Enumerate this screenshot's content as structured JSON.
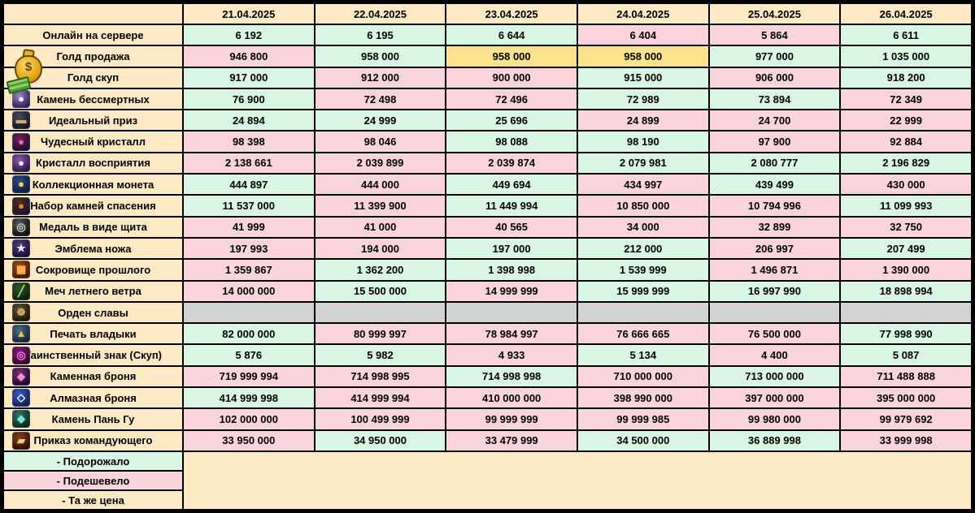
{
  "colors": {
    "up": "#d9f5e3",
    "down": "#f9d4da",
    "same": "#fbe38c",
    "empty": "#d2d2d2",
    "cream": "#fdeac4",
    "border": "#000000"
  },
  "chart_data": {
    "type": "table",
    "title": "",
    "columns": [
      "21.04.2025",
      "22.04.2025",
      "23.04.2025",
      "24.04.2025",
      "25.04.2025",
      "26.04.2025"
    ],
    "rows": [
      {
        "label": "Онлайн на сервере",
        "icon": null,
        "values": [
          6192,
          6195,
          6644,
          6404,
          5864,
          6611
        ],
        "changes": [
          "up",
          "up",
          "up",
          "down",
          "down",
          "up"
        ]
      },
      {
        "label": "Голд продажа",
        "icon": {
          "name": "money-bag-icon",
          "glyph": "$",
          "fg": "#6b4206",
          "bg1": "#f9d964",
          "bg2": "#b07408"
        },
        "values": [
          946800,
          958000,
          958000,
          958000,
          977000,
          1035000
        ],
        "changes": [
          "down",
          "up",
          "same",
          "same",
          "up",
          "up"
        ]
      },
      {
        "label": "Голд скуп",
        "icon": null,
        "values": [
          917000,
          912000,
          900000,
          915000,
          906000,
          918200
        ],
        "changes": [
          "up",
          "down",
          "down",
          "up",
          "down",
          "up"
        ]
      },
      {
        "label": "Камень бессмертных",
        "icon": {
          "name": "immortal-stone-icon",
          "glyph": "●",
          "fg": "#f2eeff",
          "bg1": "#9a8cc8",
          "bg2": "#2c1c54"
        },
        "values": [
          76900,
          72498,
          72496,
          72989,
          73894,
          72349
        ],
        "changes": [
          "up",
          "down",
          "down",
          "up",
          "up",
          "down"
        ]
      },
      {
        "label": "Идеальный приз",
        "icon": {
          "name": "ideal-prize-icon",
          "glyph": "▬",
          "fg": "#d9a96c",
          "bg1": "#4a4a66",
          "bg2": "#141420"
        },
        "values": [
          24894,
          24999,
          25696,
          24899,
          24700,
          22999
        ],
        "changes": [
          "up",
          "up",
          "up",
          "down",
          "down",
          "down"
        ]
      },
      {
        "label": "Чудесный кристалл",
        "icon": {
          "name": "wonder-crystal-icon",
          "glyph": "●",
          "fg": "#f060b0",
          "bg1": "#6a2458",
          "bg2": "#200c30"
        },
        "values": [
          98398,
          98046,
          98088,
          98190,
          97900,
          92884
        ],
        "changes": [
          "down",
          "down",
          "up",
          "up",
          "down",
          "down"
        ]
      },
      {
        "label": "Кристалл восприятия",
        "icon": {
          "name": "perception-crystal-icon",
          "glyph": "●",
          "fg": "#efe8ff",
          "bg1": "#8a5cb0",
          "bg2": "#2c1248"
        },
        "values": [
          2138661,
          2039899,
          2039874,
          2079981,
          2080777,
          2196829
        ],
        "changes": [
          "down",
          "down",
          "down",
          "up",
          "up",
          "up"
        ]
      },
      {
        "label": "Коллекционная монета",
        "icon": {
          "name": "collection-coin-icon",
          "glyph": "●",
          "fg": "#ffd34d",
          "bg1": "#2a4c8c",
          "bg2": "#0c1c3c"
        },
        "values": [
          444897,
          444000,
          449694,
          434997,
          439499,
          430000
        ],
        "changes": [
          "up",
          "down",
          "up",
          "down",
          "up",
          "down"
        ]
      },
      {
        "label": "Набор камней спасения",
        "icon": {
          "name": "salvation-stones-icon",
          "glyph": "●",
          "fg": "#e08838",
          "bg1": "#503018",
          "bg2": "#1c1030"
        },
        "values": [
          11537000,
          11399900,
          11449994,
          10850000,
          10794996,
          11099993
        ],
        "changes": [
          "up",
          "down",
          "up",
          "down",
          "down",
          "up"
        ]
      },
      {
        "label": "Медаль в виде щита",
        "icon": {
          "name": "shield-medal-icon",
          "glyph": "◎",
          "fg": "#d0d0d0",
          "bg1": "#606060",
          "bg2": "#0c0c0c"
        },
        "values": [
          41999,
          41000,
          40565,
          34000,
          32899,
          32750
        ],
        "changes": [
          "down",
          "down",
          "down",
          "down",
          "down",
          "down"
        ]
      },
      {
        "label": "Эмблема ножа",
        "icon": {
          "name": "knife-emblem-icon",
          "glyph": "★",
          "fg": "#e6e6ff",
          "bg1": "#4c3c80",
          "bg2": "#181034"
        },
        "values": [
          197993,
          194000,
          197000,
          212000,
          206997,
          207499
        ],
        "changes": [
          "down",
          "down",
          "up",
          "up",
          "down",
          "up"
        ]
      },
      {
        "label": "Сокровище прошлого",
        "icon": {
          "name": "past-treasure-icon",
          "glyph": "▦",
          "fg": "#ffb850",
          "bg1": "#a84e1c",
          "bg2": "#401808"
        },
        "values": [
          1359867,
          1362200,
          1398998,
          1539999,
          1496871,
          1390000
        ],
        "changes": [
          "down",
          "up",
          "up",
          "up",
          "down",
          "down"
        ]
      },
      {
        "label": "Меч летнего ветра",
        "icon": {
          "name": "summer-wind-sword-icon",
          "glyph": "╱",
          "fg": "#a0e878",
          "bg1": "#2c5828",
          "bg2": "#0c2008"
        },
        "values": [
          14000000,
          15500000,
          14999999,
          15999999,
          16997990,
          18898994
        ],
        "changes": [
          "down",
          "up",
          "down",
          "up",
          "up",
          "up"
        ]
      },
      {
        "label": "Орден славы",
        "icon": {
          "name": "glory-order-icon",
          "glyph": "☸",
          "fg": "#d8b060",
          "bg1": "#5c5438",
          "bg2": "#1c1608"
        },
        "values": [
          null,
          null,
          null,
          null,
          null,
          null
        ],
        "changes": [
          "empty",
          "empty",
          "empty",
          "empty",
          "empty",
          "empty"
        ]
      },
      {
        "label": "Печать владыки",
        "icon": {
          "name": "lord-seal-icon",
          "glyph": "▲",
          "fg": "#f0c040",
          "bg1": "#4c6c8c",
          "bg2": "#142434"
        },
        "values": [
          82000000,
          80999997,
          78984997,
          76666665,
          76500000,
          77998990
        ],
        "changes": [
          "up",
          "down",
          "down",
          "down",
          "down",
          "up"
        ]
      },
      {
        "label": "Таинственный знак (Скуп)",
        "icon": {
          "name": "mysterious-sign-icon",
          "glyph": "◎",
          "fg": "#ff74dc",
          "bg1": "#8c1c7c",
          "bg2": "#2c082c"
        },
        "values": [
          5876,
          5982,
          4933,
          5134,
          4400,
          5087
        ],
        "changes": [
          "up",
          "up",
          "down",
          "up",
          "down",
          "up"
        ]
      },
      {
        "label": "Каменная броня",
        "icon": {
          "name": "stone-armor-icon",
          "glyph": "◆",
          "fg": "#f48cd8",
          "bg1": "#7c3470",
          "bg2": "#1c082c"
        },
        "values": [
          719999994,
          714998995,
          714998998,
          710000000,
          713000000,
          711488888
        ],
        "changes": [
          "down",
          "down",
          "up",
          "down",
          "up",
          "down"
        ]
      },
      {
        "label": "Алмазная броня",
        "icon": {
          "name": "diamond-armor-icon",
          "glyph": "◇",
          "fg": "#ffffff",
          "bg1": "#3c5ccc",
          "bg2": "#101c50"
        },
        "values": [
          414999998,
          414999994,
          410000000,
          398990000,
          397000000,
          395000000
        ],
        "changes": [
          "up",
          "down",
          "down",
          "down",
          "down",
          "down"
        ]
      },
      {
        "label": "Камень Пань Гу",
        "icon": {
          "name": "pan-gu-stone-icon",
          "glyph": "◆",
          "fg": "#74e8d4",
          "bg1": "#2c7c6c",
          "bg2": "#0c241c"
        },
        "values": [
          102000000,
          100499999,
          99999999,
          99999985,
          99980000,
          99979692
        ],
        "changes": [
          "down",
          "down",
          "down",
          "down",
          "down",
          "down"
        ]
      },
      {
        "label": "Приказ командующего",
        "icon": {
          "name": "commander-order-icon",
          "glyph": "▰",
          "fg": "#eec878",
          "bg1": "#8c3c20",
          "bg2": "#2c0c08"
        },
        "values": [
          33950000,
          34950000,
          33479999,
          34500000,
          36889998,
          33999998
        ],
        "changes": [
          "down",
          "up",
          "down",
          "up",
          "up",
          "down"
        ]
      }
    ],
    "legend": [
      {
        "label": "- Подорожало",
        "color_key": "up"
      },
      {
        "label": "- Подешевело",
        "color_key": "down"
      },
      {
        "label": "- Та же цена",
        "color_key": "cream"
      }
    ]
  }
}
